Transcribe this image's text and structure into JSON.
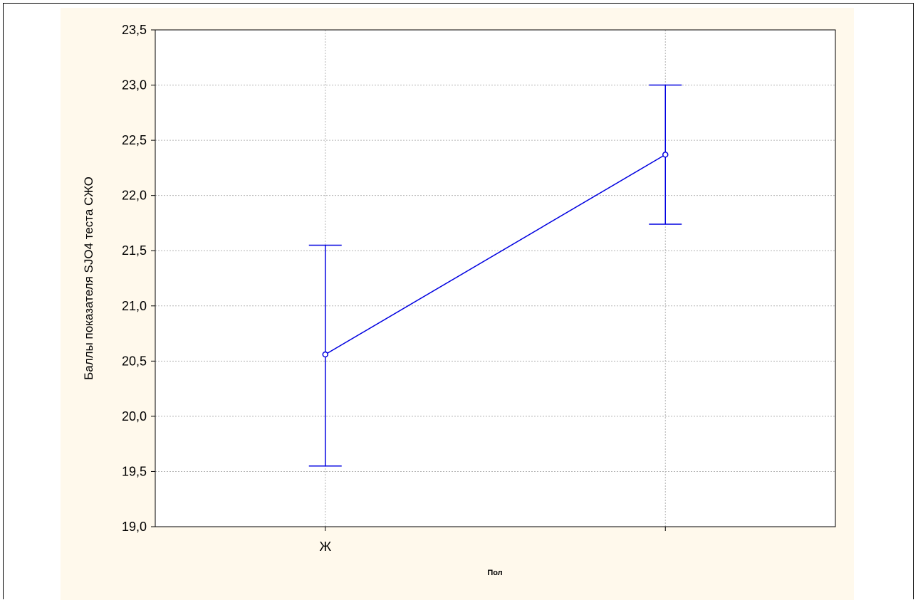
{
  "chart_data": {
    "type": "line",
    "title": "",
    "xlabel": "Пол",
    "ylabel": "Баллы показателя SJO4 теста СЖО",
    "categories": [
      "Ж",
      ""
    ],
    "x_tick_labels": [
      "Ж",
      ""
    ],
    "y_tick_labels": [
      "19,0",
      "19,5",
      "20,0",
      "20,5",
      "21,0",
      "21,5",
      "22,0",
      "22,5",
      "23,0",
      "23,5"
    ],
    "ylim": [
      19.0,
      23.5
    ],
    "grid": true,
    "legend": "none",
    "series": [
      {
        "values": [
          20.56,
          22.37
        ],
        "error_low": [
          19.55,
          21.74
        ],
        "error_high": [
          21.55,
          23.0
        ]
      }
    ]
  },
  "colors": {
    "series": "#0000e0",
    "grid": "#b4b4b4",
    "plot_background": "#ffffff",
    "chart_background": "#fff9ec"
  }
}
